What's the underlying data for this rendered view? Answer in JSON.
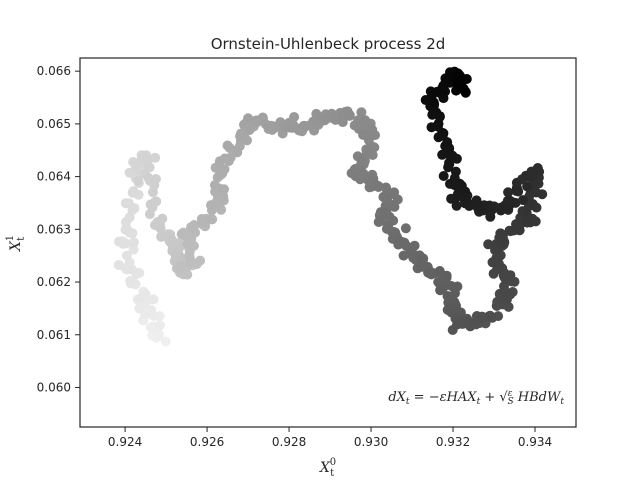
{
  "chart_data": {
    "type": "scatter",
    "title": "Ornstein-Uhlenbeck process 2d",
    "xlabel": {
      "base": "X",
      "sub": "t",
      "sup": "0"
    },
    "ylabel": {
      "base": "X",
      "sub": "t",
      "sup": "1"
    },
    "xlim": [
      0.9229,
      0.935
    ],
    "ylim": [
      0.05925,
      0.06625
    ],
    "xticks": [
      0.924,
      0.926,
      0.928,
      0.93,
      0.932,
      0.934
    ],
    "xtick_labels": [
      "0.924",
      "0.926",
      "0.928",
      "0.930",
      "0.932",
      "0.934"
    ],
    "yticks": [
      0.06,
      0.061,
      0.062,
      0.063,
      0.064,
      0.065,
      0.066
    ],
    "ytick_labels": [
      "0.060",
      "0.061",
      "0.062",
      "0.063",
      "0.064",
      "0.065",
      "0.066"
    ],
    "grid": false,
    "legend": "none",
    "annotation": "dX_t = −εHAX_t + √(ε/S) HBdW_t",
    "color_encoding": "grayscale by time: light gray (#f0f0f0) at start → black (#000000) at end",
    "path_waypoints": [
      [
        0.9249,
        0.06085
      ],
      [
        0.9247,
        0.0612
      ],
      [
        0.9245,
        0.0616
      ],
      [
        0.9242,
        0.062
      ],
      [
        0.924,
        0.06255
      ],
      [
        0.9241,
        0.063
      ],
      [
        0.9243,
        0.0637
      ],
      [
        0.9242,
        0.0642
      ],
      [
        0.9245,
        0.0644
      ],
      [
        0.9246,
        0.0639
      ],
      [
        0.9248,
        0.0632
      ],
      [
        0.9251,
        0.0628
      ],
      [
        0.9253,
        0.0625
      ],
      [
        0.9254,
        0.06215
      ],
      [
        0.9256,
        0.0624
      ],
      [
        0.9255,
        0.0629
      ],
      [
        0.9258,
        0.0631
      ],
      [
        0.9262,
        0.0634
      ],
      [
        0.9263,
        0.0637
      ],
      [
        0.9264,
        0.0642
      ],
      [
        0.9267,
        0.0646
      ],
      [
        0.927,
        0.06495
      ],
      [
        0.9272,
        0.0651
      ],
      [
        0.9276,
        0.06495
      ],
      [
        0.928,
        0.065
      ],
      [
        0.9284,
        0.0649
      ],
      [
        0.9288,
        0.0651
      ],
      [
        0.9292,
        0.0652
      ],
      [
        0.9296,
        0.0651
      ],
      [
        0.9299,
        0.06495
      ],
      [
        0.93,
        0.0646
      ],
      [
        0.9298,
        0.0643
      ],
      [
        0.9296,
        0.0641
      ],
      [
        0.93,
        0.06395
      ],
      [
        0.9303,
        0.0638
      ],
      [
        0.9305,
        0.0635
      ],
      [
        0.9303,
        0.0632
      ],
      [
        0.9306,
        0.0629
      ],
      [
        0.9309,
        0.0627
      ],
      [
        0.9311,
        0.0624
      ],
      [
        0.9315,
        0.0622
      ],
      [
        0.9318,
        0.062
      ],
      [
        0.932,
        0.0617
      ],
      [
        0.932,
        0.0614
      ],
      [
        0.9322,
        0.0612
      ],
      [
        0.9326,
        0.06125
      ],
      [
        0.933,
        0.06145
      ],
      [
        0.9333,
        0.0617
      ],
      [
        0.9334,
        0.062
      ],
      [
        0.9331,
        0.06225
      ],
      [
        0.933,
        0.06265
      ],
      [
        0.9333,
        0.06285
      ],
      [
        0.9336,
        0.06305
      ],
      [
        0.9339,
        0.06325
      ],
      [
        0.934,
        0.0637
      ],
      [
        0.9341,
        0.06415
      ],
      [
        0.9337,
        0.06385
      ],
      [
        0.9334,
        0.0635
      ],
      [
        0.933,
        0.06335
      ],
      [
        0.9326,
        0.06345
      ],
      [
        0.9322,
        0.0636
      ],
      [
        0.932,
        0.06395
      ],
      [
        0.9318,
        0.0644
      ],
      [
        0.9317,
        0.0649
      ],
      [
        0.9316,
        0.0653
      ],
      [
        0.9317,
        0.0657
      ],
      [
        0.932,
        0.06595
      ],
      [
        0.9323,
        0.06585
      ],
      [
        0.9322,
        0.06555
      ]
    ],
    "noise": {
      "x": 0.00018,
      "y": 0.0001
    },
    "n_points": 600
  }
}
